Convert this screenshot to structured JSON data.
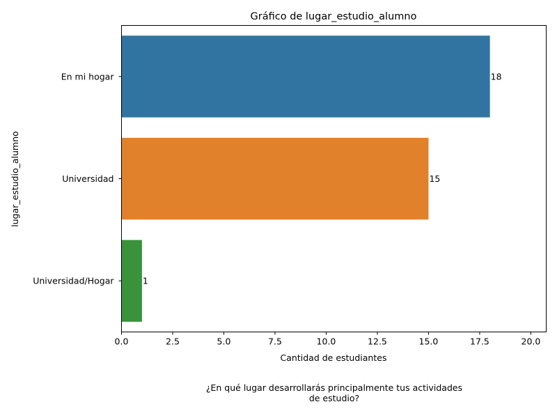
{
  "chart_data": {
    "type": "bar",
    "orientation": "horizontal",
    "title": "Gráfico de lugar_estudio_alumno",
    "xlabel": "Cantidad de estudiantes",
    "ylabel": "lugar_estudio_alumno",
    "categories": [
      "En mi hogar",
      "Universidad",
      "Universidad/Hogar"
    ],
    "values": [
      18,
      15,
      1
    ],
    "value_labels": [
      "18",
      "15",
      "1"
    ],
    "colors": [
      "#3274a1",
      "#e1812c",
      "#3a923a"
    ],
    "xlim": [
      0,
      20.75
    ],
    "xticks": [
      0,
      2.5,
      5,
      7.5,
      10,
      12.5,
      15,
      17.5,
      20
    ],
    "xtick_labels": [
      "0.0",
      "2.5",
      "5.0",
      "7.5",
      "10.0",
      "12.5",
      "15.0",
      "17.5",
      "20.0"
    ],
    "grid": false,
    "legend": "none"
  },
  "caption": {
    "line1": "¿En qué lugar desarrollarás principalmente tus actividades",
    "line2": "de estudio?"
  }
}
